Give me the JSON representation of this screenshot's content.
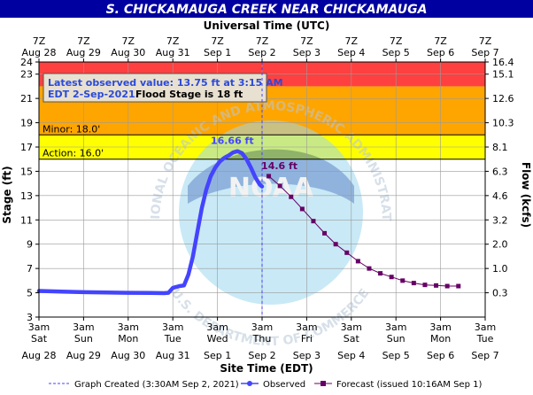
{
  "chart_data": {
    "type": "line",
    "title": "S. CHICKAMAUGA CREEK NEAR CHICKAMAUGA",
    "top_axis_title": "Universal Time (UTC)",
    "xlabel": "Site Time (EDT)",
    "ylabel": "Stage (ft)",
    "y2label": "Flow (kcfs)",
    "ylim": [
      3,
      24
    ],
    "yticks": [
      3,
      5,
      7,
      9,
      11,
      13,
      15,
      17,
      19,
      21,
      23,
      24
    ],
    "flow_ticks": [
      {
        "stage": 24,
        "label": "16.4"
      },
      {
        "stage": 23,
        "label": "15.1"
      },
      {
        "stage": 21,
        "label": "12.6"
      },
      {
        "stage": 19,
        "label": "10.3"
      },
      {
        "stage": 17,
        "label": "8.1"
      },
      {
        "stage": 15,
        "label": "6.3"
      },
      {
        "stage": 13,
        "label": "4.6"
      },
      {
        "stage": 11,
        "label": "3.2"
      },
      {
        "stage": 9,
        "label": "2.0"
      },
      {
        "stage": 7,
        "label": "1.0"
      },
      {
        "stage": 5,
        "label": "0.3"
      }
    ],
    "x_range_days": [
      0,
      10
    ],
    "bottom_ticks": [
      {
        "hour": "3am",
        "dow": "Sat",
        "date": "Aug 28"
      },
      {
        "hour": "3am",
        "dow": "Sun",
        "date": "Aug 29"
      },
      {
        "hour": "3am",
        "dow": "Mon",
        "date": "Aug 30"
      },
      {
        "hour": "3am",
        "dow": "Tue",
        "date": "Aug 31"
      },
      {
        "hour": "3am",
        "dow": "Wed",
        "date": "Sep 1"
      },
      {
        "hour": "3am",
        "dow": "Thu",
        "date": "Sep 2"
      },
      {
        "hour": "3am",
        "dow": "Fri",
        "date": "Sep 3"
      },
      {
        "hour": "3am",
        "dow": "Sat",
        "date": "Sep 4"
      },
      {
        "hour": "3am",
        "dow": "Sun",
        "date": "Sep 5"
      },
      {
        "hour": "3am",
        "dow": "Mon",
        "date": "Sep 6"
      },
      {
        "hour": "3am",
        "dow": "Tue",
        "date": "Sep 7"
      }
    ],
    "top_ticks": [
      {
        "hour": "7Z",
        "date": "Aug 28"
      },
      {
        "hour": "7Z",
        "date": "Aug 29"
      },
      {
        "hour": "7Z",
        "date": "Aug 30"
      },
      {
        "hour": "7Z",
        "date": "Aug 31"
      },
      {
        "hour": "7Z",
        "date": "Sep 1"
      },
      {
        "hour": "7Z",
        "date": "Sep 2"
      },
      {
        "hour": "7Z",
        "date": "Sep 3"
      },
      {
        "hour": "7Z",
        "date": "Sep 4"
      },
      {
        "hour": "7Z",
        "date": "Sep 5"
      },
      {
        "hour": "7Z",
        "date": "Sep 6"
      },
      {
        "hour": "7Z",
        "date": "Sep 7"
      }
    ],
    "bands": [
      {
        "from": 16,
        "to": 18,
        "color": "#ffff00"
      },
      {
        "from": 18,
        "to": 22,
        "color": "#ffa500"
      },
      {
        "from": 22,
        "to": 24,
        "color": "#ff4040"
      }
    ],
    "thresholds": [
      {
        "label": "Minor: 18.0'",
        "value": 18
      },
      {
        "label": "Action: 16.0'",
        "value": 16
      }
    ],
    "latest_obs_text_1": "Latest observed value: 13.75 ft at 3:15 AM",
    "latest_obs_text_2": "EDT 2-Sep-2021.",
    "flood_stage_text": "Flood Stage is 18 ft",
    "created_day": 5.0,
    "series": [
      {
        "name": "Observed",
        "color": "#4444ff",
        "points": [
          [
            0,
            5.15
          ],
          [
            0.5,
            5.1
          ],
          [
            1.0,
            5.05
          ],
          [
            1.5,
            5.02
          ],
          [
            2.0,
            5.0
          ],
          [
            2.5,
            4.98
          ],
          [
            2.8,
            4.97
          ],
          [
            2.9,
            5.0
          ],
          [
            3.0,
            5.4
          ],
          [
            3.15,
            5.55
          ],
          [
            3.25,
            5.6
          ],
          [
            3.35,
            6.5
          ],
          [
            3.45,
            8.0
          ],
          [
            3.55,
            10.0
          ],
          [
            3.65,
            12.0
          ],
          [
            3.75,
            13.5
          ],
          [
            3.85,
            14.6
          ],
          [
            3.95,
            15.3
          ],
          [
            4.05,
            15.8
          ],
          [
            4.15,
            16.1
          ],
          [
            4.25,
            16.3
          ],
          [
            4.35,
            16.55
          ],
          [
            4.45,
            16.66
          ],
          [
            4.55,
            16.5
          ],
          [
            4.65,
            16.0
          ],
          [
            4.75,
            15.3
          ],
          [
            4.85,
            14.5
          ],
          [
            4.95,
            13.9
          ],
          [
            5.0,
            13.75
          ]
        ]
      },
      {
        "name": "Forecast (issued 10:16AM Sep 1)",
        "color": "#660066",
        "points": [
          [
            5.15,
            14.6
          ],
          [
            5.4,
            13.8
          ],
          [
            5.65,
            12.9
          ],
          [
            5.9,
            11.9
          ],
          [
            6.15,
            10.9
          ],
          [
            6.4,
            9.9
          ],
          [
            6.65,
            9.0
          ],
          [
            6.9,
            8.3
          ],
          [
            7.15,
            7.6
          ],
          [
            7.4,
            7.0
          ],
          [
            7.65,
            6.6
          ],
          [
            7.9,
            6.3
          ],
          [
            8.15,
            6.0
          ],
          [
            8.4,
            5.8
          ],
          [
            8.65,
            5.65
          ],
          [
            8.9,
            5.6
          ],
          [
            9.15,
            5.55
          ],
          [
            9.4,
            5.55
          ]
        ]
      }
    ],
    "annotations": [
      {
        "text": "16.66 ft",
        "x": 4.45,
        "y": 16.66,
        "color": "#4444ff"
      },
      {
        "text": "14.6 ft",
        "x": 5.15,
        "y": 14.6,
        "color": "#660066"
      }
    ],
    "legend": {
      "created": "Graph Created (3:30AM Sep 2, 2021)",
      "observed": "Observed",
      "forecast": "Forecast (issued 10:16AM Sep 1)"
    },
    "watermark": {
      "letters": "NOAA",
      "top_arc": "NATIONAL OCEANIC AND ATMOSPHERIC ADMINISTRATION",
      "bottom_arc": "U.S. DEPARTMENT OF COMMERCE"
    }
  }
}
